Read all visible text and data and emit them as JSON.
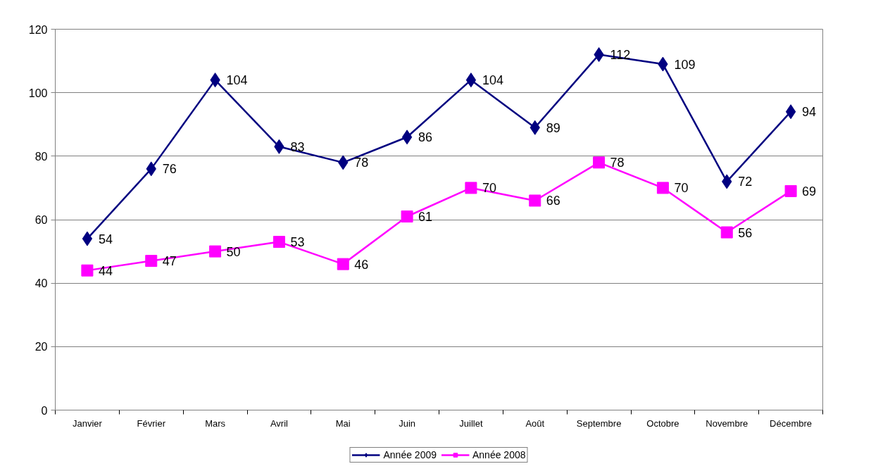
{
  "chart_data": {
    "type": "line",
    "categories": [
      "Janvier",
      "Février",
      "Mars",
      "Avril",
      "Mai",
      "Juin",
      "Juillet",
      "Août",
      "Septembre",
      "Octobre",
      "Novembre",
      "Décembre"
    ],
    "series": [
      {
        "name": "Année 2009",
        "color": "#000080",
        "marker": "diamond",
        "values": [
          54,
          76,
          104,
          83,
          78,
          86,
          104,
          89,
          112,
          109,
          72,
          94
        ]
      },
      {
        "name": "Année 2008",
        "color": "#ff00ff",
        "marker": "square",
        "values": [
          44,
          47,
          50,
          53,
          46,
          61,
          70,
          66,
          78,
          70,
          56,
          69
        ]
      }
    ],
    "ylim": [
      0,
      120
    ],
    "yticks": [
      0,
      20,
      40,
      60,
      80,
      100,
      120
    ],
    "grid": "y",
    "legend": "bottom",
    "data_labels": true,
    "line_style": "solid"
  }
}
